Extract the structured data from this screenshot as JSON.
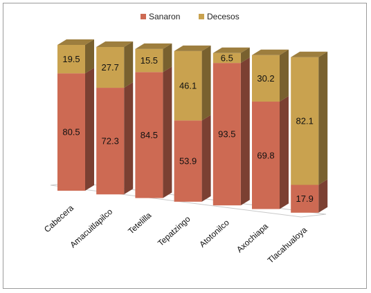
{
  "chart_data": {
    "type": "bar",
    "stacked": true,
    "percent_stacked": true,
    "three_d": true,
    "title": "",
    "xlabel": "",
    "ylabel": "",
    "ylim": [
      0,
      100
    ],
    "grid": false,
    "legend_position": "top",
    "categories": [
      "Cabecera",
      "Amacuitlapilco",
      "Tetelilla",
      "Tepatzingo",
      "Atotonilco",
      "Axochiapa",
      "Tlacahualoya"
    ],
    "series": [
      {
        "name": "Sanaron",
        "color": "#cd6a53",
        "values": [
          80.5,
          72.3,
          84.5,
          53.9,
          93.5,
          69.8,
          17.9
        ]
      },
      {
        "name": "Decesos",
        "color": "#c9a24f",
        "values": [
          19.5,
          27.7,
          15.5,
          46.1,
          6.5,
          30.2,
          82.1
        ]
      }
    ]
  }
}
